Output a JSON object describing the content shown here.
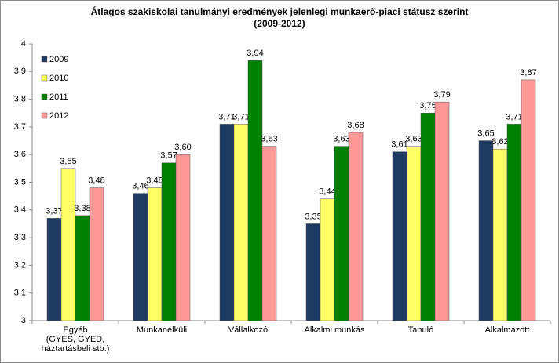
{
  "chart_data": {
    "type": "bar",
    "title": "Átlagos szakiskolai tanulmányi eredmények jelenlegi munkaerő-piaci státusz szerint",
    "subtitle": "(2009-2012)",
    "categories": [
      "Egyéb\n(GYES, GYED,\nháztartásbeli stb.)",
      "Munkanélküli",
      "Vállalkozó",
      "Alkalmi munkás",
      "Tanuló",
      "Alkalmazott"
    ],
    "series": [
      {
        "name": "2009",
        "color": "#1f3a60",
        "values": [
          3.37,
          3.46,
          3.71,
          3.35,
          3.61,
          3.65
        ],
        "value_labels": [
          "3,37",
          "3,46",
          "3,71",
          "3,35",
          "3,61",
          "3,65"
        ]
      },
      {
        "name": "2010",
        "color": "#ffff66",
        "values": [
          3.55,
          3.48,
          3.71,
          3.44,
          3.63,
          3.62
        ],
        "value_labels": [
          "3,55",
          "3,48",
          "3,71",
          "3,44",
          "3,63",
          "3,62"
        ]
      },
      {
        "name": "2011",
        "color": "#008000",
        "values": [
          3.38,
          3.57,
          3.94,
          3.63,
          3.75,
          3.71
        ],
        "value_labels": [
          "3,38",
          "3,57",
          "3,94",
          "3,63",
          "3,75",
          "3,71"
        ]
      },
      {
        "name": "2012",
        "color": "#ff9999",
        "values": [
          3.48,
          3.6,
          3.63,
          3.68,
          3.79,
          3.87
        ],
        "value_labels": [
          "3,48",
          "3,60",
          "3,63",
          "3,68",
          "3,79",
          "3,87"
        ]
      }
    ],
    "ylim": [
      3,
      4
    ],
    "yticks": [
      3,
      {
        "value": 3.1,
        "label": "3,1"
      },
      {
        "value": 3.2,
        "label": "3,2"
      },
      {
        "value": 3.3,
        "label": "3,3"
      },
      {
        "value": 3.4,
        "label": "3,4"
      },
      {
        "value": 3.5,
        "label": "3,5"
      },
      {
        "value": 3.6,
        "label": "3,6"
      },
      {
        "value": 3.7,
        "label": "3,7"
      },
      {
        "value": 3.8,
        "label": "3,8"
      },
      {
        "value": 3.9,
        "label": "3,9"
      },
      4
    ],
    "legend": "top-left",
    "grid": false
  }
}
